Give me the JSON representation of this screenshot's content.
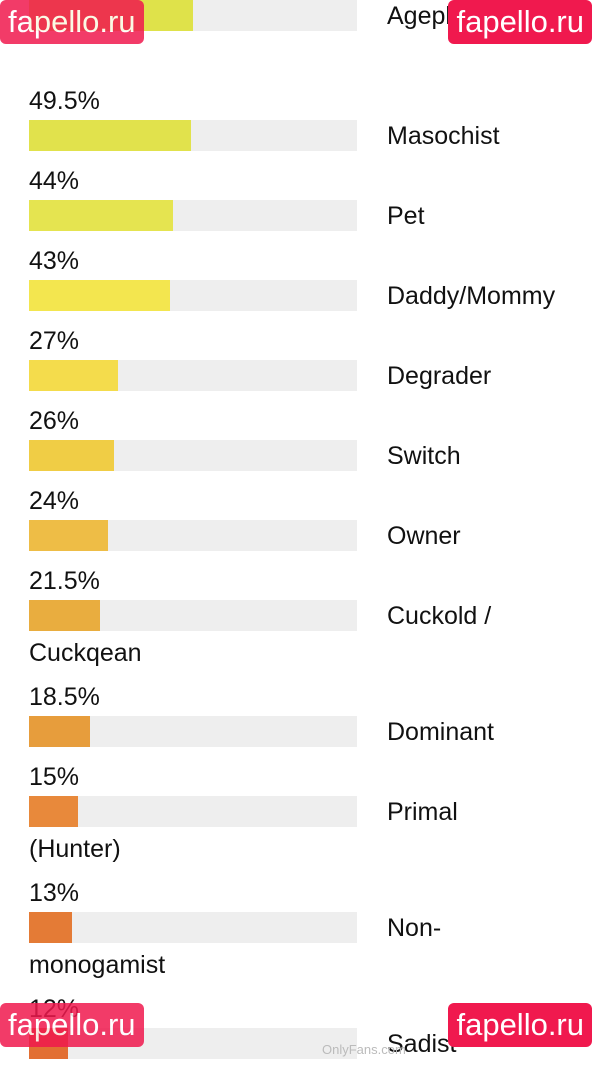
{
  "watermarks": {
    "brand_text": "fapello.ru",
    "brand_color": "#f0194e",
    "platform_text": "OnlyFans.com"
  },
  "rows": [
    {
      "percent": "",
      "value": 50,
      "label": "Ageplayer",
      "wrap": "",
      "color": "#dfe24a"
    },
    {
      "percent": "49.5%",
      "value": 49.5,
      "label": "Masochist",
      "wrap": "",
      "color": "#e1e24c"
    },
    {
      "percent": "44%",
      "value": 44,
      "label": "Pet",
      "wrap": "",
      "color": "#e5e450"
    },
    {
      "percent": "43%",
      "value": 43,
      "label": "Daddy/Mommy",
      "wrap": "",
      "color": "#f3e64f"
    },
    {
      "percent": "27%",
      "value": 27,
      "label": "Degrader",
      "wrap": "",
      "color": "#f4dc4c"
    },
    {
      "percent": "26%",
      "value": 26,
      "label": "Switch",
      "wrap": "",
      "color": "#f0cd45"
    },
    {
      "percent": "24%",
      "value": 24,
      "label": "Owner",
      "wrap": "",
      "color": "#eebd46"
    },
    {
      "percent": "21.5%",
      "value": 21.5,
      "label": "Cuckold /",
      "wrap": "Cuckqean",
      "color": "#e9ad3f"
    },
    {
      "percent": "18.5%",
      "value": 18.5,
      "label": "Dominant",
      "wrap": "",
      "color": "#e79d3c"
    },
    {
      "percent": "15%",
      "value": 15,
      "label": "Primal",
      "wrap": "(Hunter)",
      "color": "#e8893b"
    },
    {
      "percent": "13%",
      "value": 13,
      "label": "Non-",
      "wrap": "monogamist",
      "color": "#e47b36"
    },
    {
      "percent": "12%",
      "value": 12,
      "label": "Sadist",
      "wrap": "",
      "color": "#e26f33"
    }
  ]
}
